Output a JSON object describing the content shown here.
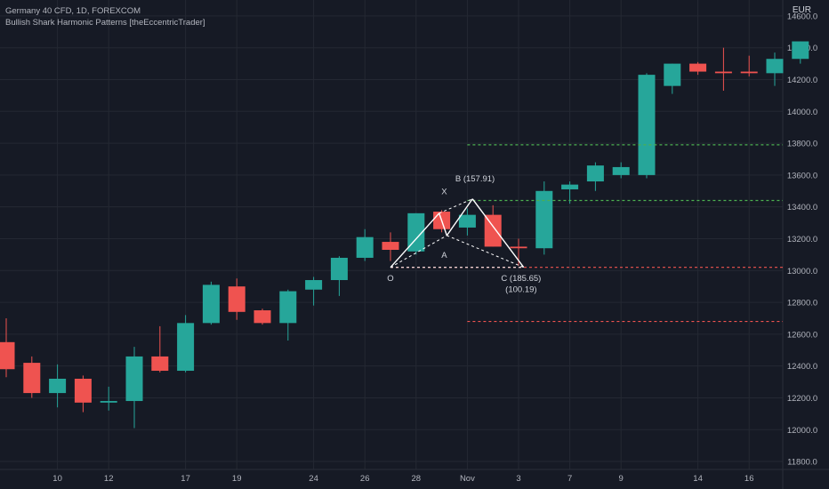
{
  "legend": {
    "symbol_line": "Germany 40 CFD, 1D, FOREXCOM",
    "indicator_line": "Bullish Shark Harmonic Patterns [theEccentricTrader]"
  },
  "price_axis": {
    "currency": "EUR"
  },
  "colors": {
    "background": "#161a25",
    "grid": "#242833",
    "up": "#26a69a",
    "down": "#ef5350",
    "text": "#b2b5be",
    "pattern": "#ffffff",
    "level_green": "#4caf50",
    "level_red": "#ef5350"
  },
  "chart_data": {
    "type": "candlestick",
    "ylim": [
      11750,
      14700
    ],
    "y_ticks": [
      11800,
      12000,
      12200,
      12400,
      12600,
      12800,
      13000,
      13200,
      13400,
      13600,
      13800,
      14000,
      14200,
      14400,
      14600
    ],
    "x_tick_labels": [
      "10",
      "12",
      "17",
      "19",
      "24",
      "26",
      "28",
      "Nov",
      "3",
      "7",
      "9",
      "14",
      "16"
    ],
    "x_tick_index": [
      2,
      4,
      7,
      9,
      12,
      14,
      16,
      18,
      20,
      22,
      24,
      27,
      29
    ],
    "candles": [
      {
        "open": 12550,
        "high": 12700,
        "low": 12330,
        "close": 12380
      },
      {
        "open": 12420,
        "high": 12460,
        "low": 12200,
        "close": 12230
      },
      {
        "open": 12230,
        "high": 12410,
        "low": 12140,
        "close": 12320
      },
      {
        "open": 12320,
        "high": 12340,
        "low": 12110,
        "close": 12170
      },
      {
        "open": 12170,
        "high": 12270,
        "low": 12120,
        "close": 12180
      },
      {
        "open": 12180,
        "high": 12520,
        "low": 12010,
        "close": 12460
      },
      {
        "open": 12460,
        "high": 12650,
        "low": 12360,
        "close": 12370
      },
      {
        "open": 12370,
        "high": 12720,
        "low": 12360,
        "close": 12670
      },
      {
        "open": 12670,
        "high": 12930,
        "low": 12660,
        "close": 12910
      },
      {
        "open": 12900,
        "high": 12950,
        "low": 12690,
        "close": 12740
      },
      {
        "open": 12750,
        "high": 12760,
        "low": 12660,
        "close": 12670
      },
      {
        "open": 12670,
        "high": 12880,
        "low": 12560,
        "close": 12870
      },
      {
        "open": 12880,
        "high": 12960,
        "low": 12780,
        "close": 12940
      },
      {
        "open": 12940,
        "high": 13090,
        "low": 12840,
        "close": 13080
      },
      {
        "open": 13080,
        "high": 13260,
        "low": 13060,
        "close": 13210
      },
      {
        "open": 13180,
        "high": 13240,
        "low": 13060,
        "close": 13130
      },
      {
        "open": 13120,
        "high": 13360,
        "low": 13100,
        "close": 13360
      },
      {
        "open": 13370,
        "high": 13380,
        "low": 13240,
        "close": 13260
      },
      {
        "open": 13270,
        "high": 13390,
        "low": 13220,
        "close": 13350
      },
      {
        "open": 13350,
        "high": 13410,
        "low": 13150,
        "close": 13150
      },
      {
        "open": 13150,
        "high": 13200,
        "low": 13030,
        "close": 13140
      },
      {
        "open": 13140,
        "high": 13560,
        "low": 13100,
        "close": 13500
      },
      {
        "open": 13510,
        "high": 13560,
        "low": 13420,
        "close": 13540
      },
      {
        "open": 13560,
        "high": 13680,
        "low": 13500,
        "close": 13660
      },
      {
        "open": 13600,
        "high": 13680,
        "low": 13580,
        "close": 13650
      },
      {
        "open": 13600,
        "high": 14240,
        "low": 13580,
        "close": 14230
      },
      {
        "open": 14160,
        "high": 14300,
        "low": 14110,
        "close": 14300
      },
      {
        "open": 14300,
        "high": 14310,
        "low": 14230,
        "close": 14250
      },
      {
        "open": 14250,
        "high": 14400,
        "low": 14130,
        "close": 14240
      },
      {
        "open": 14250,
        "high": 14350,
        "low": 14220,
        "close": 14240
      },
      {
        "open": 14240,
        "high": 14370,
        "low": 14160,
        "close": 14330
      },
      {
        "open": 14330,
        "high": 14440,
        "low": 14300,
        "close": 14440
      }
    ],
    "pattern": {
      "points": [
        {
          "label": "O",
          "index": 15,
          "price": 13020
        },
        {
          "label": "X",
          "index": 16.9,
          "price": 13360
        },
        {
          "label": "A",
          "index": 17.2,
          "price": 13220
        },
        {
          "label": "B",
          "index": 18.2,
          "price": 13450
        },
        {
          "label": "C",
          "index": 20.2,
          "price": 13020
        }
      ],
      "labels": [
        {
          "text": "O",
          "index": 15,
          "price": 12935
        },
        {
          "text": "X",
          "index": 17.1,
          "price": 13480
        },
        {
          "text": "A",
          "index": 17.1,
          "price": 13080
        },
        {
          "text": "B (157.91)",
          "index": 18.3,
          "price": 13560
        },
        {
          "text": "C (185.65)",
          "index": 20.1,
          "price": 12935
        },
        {
          "text": "(100.19)",
          "index": 20.1,
          "price": 12865
        }
      ],
      "levels": [
        {
          "price": 13790,
          "from_index": 18,
          "color": "level_green"
        },
        {
          "price": 13440,
          "from_index": 18,
          "color": "level_green"
        },
        {
          "price": 13020,
          "from_index": 15,
          "color": "level_red"
        },
        {
          "price": 12680,
          "from_index": 18,
          "color": "level_red"
        }
      ]
    }
  }
}
